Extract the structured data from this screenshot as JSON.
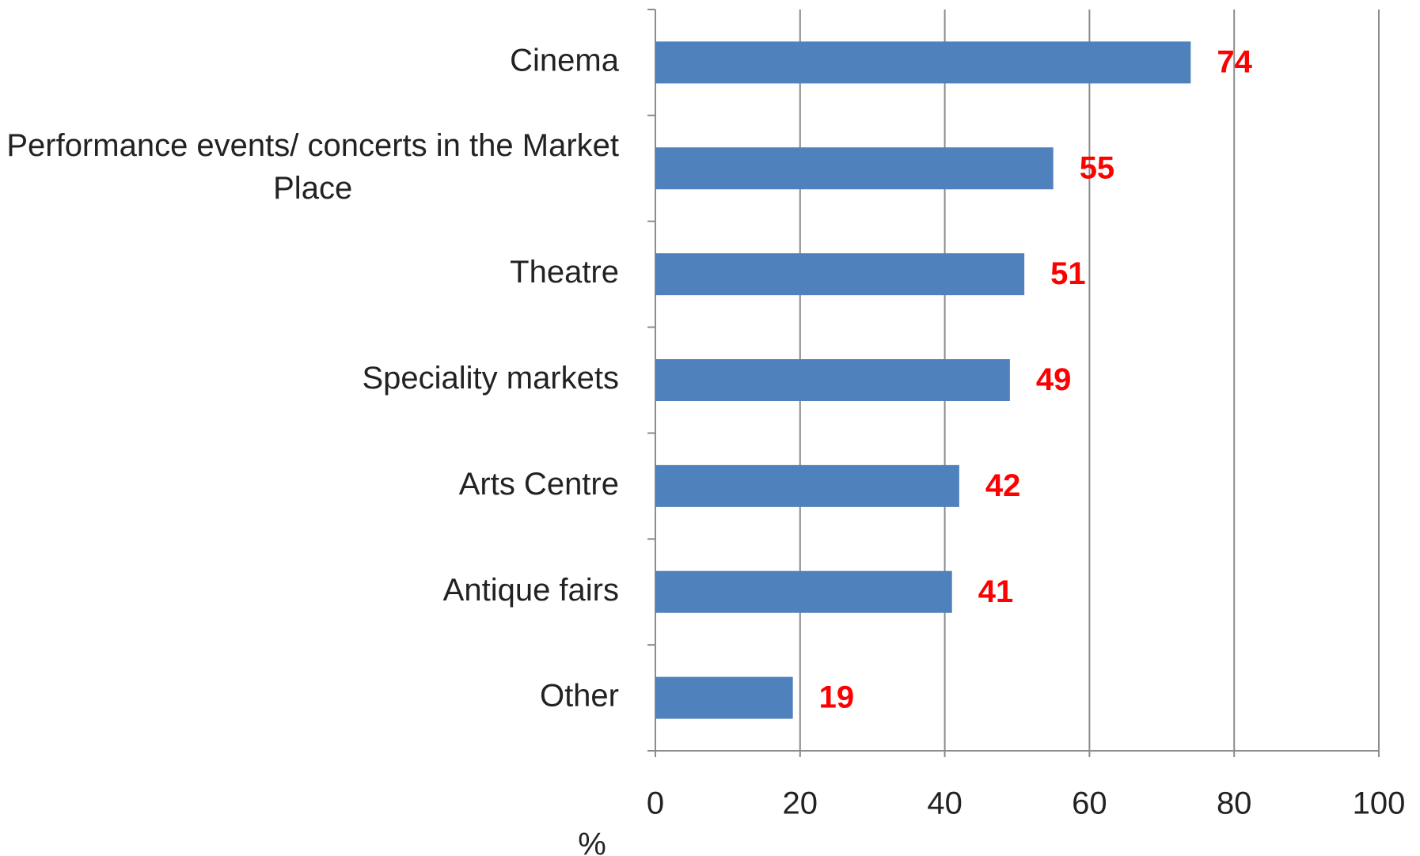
{
  "chart_data": {
    "type": "bar",
    "orientation": "horizontal",
    "categories": [
      "Cinema",
      "Performance events/ concerts in the Market Place",
      "Theatre",
      "Speciality markets",
      "Arts Centre",
      "Antique fairs",
      "Other"
    ],
    "values": [
      74,
      55,
      51,
      49,
      42,
      41,
      19
    ],
    "color": "#4f81bd",
    "value_label_color": "#ff0000",
    "x_label": "%",
    "xlim": [
      0,
      100
    ],
    "xticks": [
      0,
      20,
      40,
      60,
      80,
      100
    ],
    "grid": true
  }
}
